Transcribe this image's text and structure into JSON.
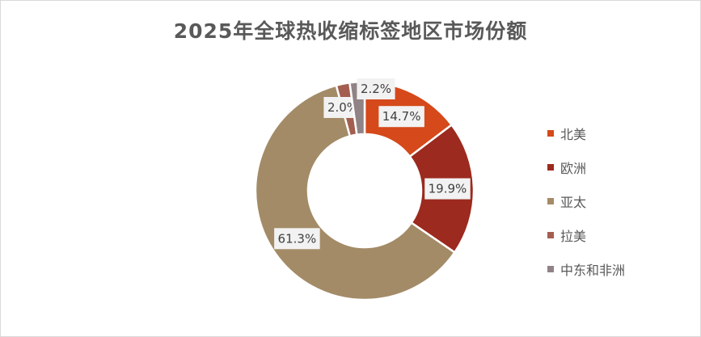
{
  "chart_data": {
    "type": "pie",
    "variant": "donut",
    "title": "2025年全球热收缩标签地区市场份额",
    "categories": [
      "北美",
      "欧洲",
      "亚太",
      "拉美",
      "中东和非洲"
    ],
    "values": [
      14.7,
      19.9,
      61.3,
      2.0,
      2.2
    ],
    "labels": [
      "14.7%",
      "19.9%",
      "61.3%",
      "2.0%",
      "2.2%"
    ],
    "unit": "%",
    "colors": [
      "#D5491A",
      "#9C2A1E",
      "#A38B67",
      "#A45E4F",
      "#908385"
    ],
    "legend_position": "right"
  }
}
